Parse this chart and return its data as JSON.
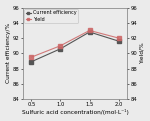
{
  "x": [
    0.5,
    1.0,
    1.5,
    2.0
  ],
  "current_efficiency": [
    88.9,
    90.6,
    92.8,
    91.6
  ],
  "yield_vals": [
    89.5,
    91.0,
    93.0,
    92.0
  ],
  "xlabel": "Sulfuric acid concentration/(mol·L⁻¹)",
  "ylabel_left": "Current efficiency/%",
  "ylabel_right": "Yield/%",
  "ylim": [
    84,
    96
  ],
  "yticks": [
    84,
    86,
    88,
    90,
    92,
    94,
    96
  ],
  "xticks": [
    0.5,
    1.0,
    1.5,
    2.0
  ],
  "xtick_labels": [
    "0.5",
    "1.0",
    "1.5",
    "2.0"
  ],
  "legend_labels": [
    "Current efficiency",
    "Yield"
  ],
  "line_color_ce": "#555555",
  "line_color_yield": "#cc6666",
  "marker_ce": "s",
  "marker_yield": "s",
  "bg_color": "#ebebeb",
  "fig_w": 1.5,
  "fig_h": 1.21,
  "dpi": 100
}
